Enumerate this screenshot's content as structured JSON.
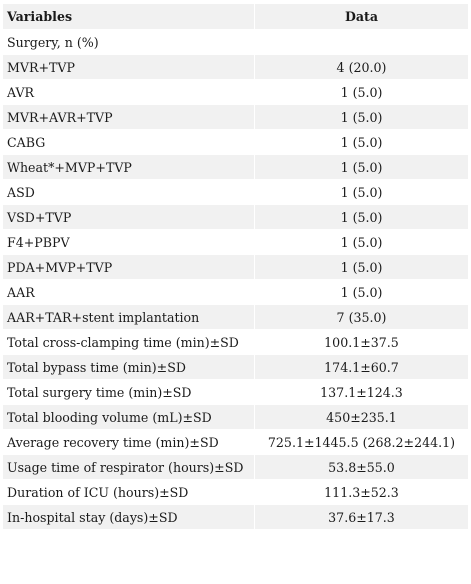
{
  "table": {
    "headers": [
      "Variables",
      "Data"
    ],
    "rows": [
      {
        "variable": "Surgery, n (%)",
        "data": ""
      },
      {
        "variable": "MVR+TVP",
        "data": "4 (20.0)"
      },
      {
        "variable": "AVR",
        "data": "1 (5.0)"
      },
      {
        "variable": "MVR+AVR+TVP",
        "data": "1 (5.0)"
      },
      {
        "variable": "CABG",
        "data": "1 (5.0)"
      },
      {
        "variable": "Wheat*+MVP+TVP",
        "data": "1 (5.0)"
      },
      {
        "variable": "ASD",
        "data": "1 (5.0)"
      },
      {
        "variable": "VSD+TVP",
        "data": "1 (5.0)"
      },
      {
        "variable": "F4+PBPV",
        "data": "1 (5.0)"
      },
      {
        "variable": "PDA+MVP+TVP",
        "data": "1 (5.0)"
      },
      {
        "variable": "AAR",
        "data": "1 (5.0)"
      },
      {
        "variable": "AAR+TAR+stent implantation",
        "data": "7 (35.0)"
      },
      {
        "variable": "Total cross-clamping time (min)±SD",
        "data": "100.1±37.5"
      },
      {
        "variable": "Total bypass time (min)±SD",
        "data": "174.1±60.7"
      },
      {
        "variable": "Total surgery time (min)±SD",
        "data": "137.1±124.3"
      },
      {
        "variable": "Total blooding volume (mL)±SD",
        "data": "450±235.1"
      },
      {
        "variable": "Average recovery time (min)±SD",
        "data": "725.1±1445.5 (268.2±244.1)"
      },
      {
        "variable": "Usage time of respirator (hours)±SD",
        "data": "53.8±55.0"
      },
      {
        "variable": "Duration of ICU (hours)±SD",
        "data": "111.3±52.3"
      },
      {
        "variable": "In-hospital stay (days)±SD",
        "data": "37.6±17.3"
      }
    ]
  }
}
